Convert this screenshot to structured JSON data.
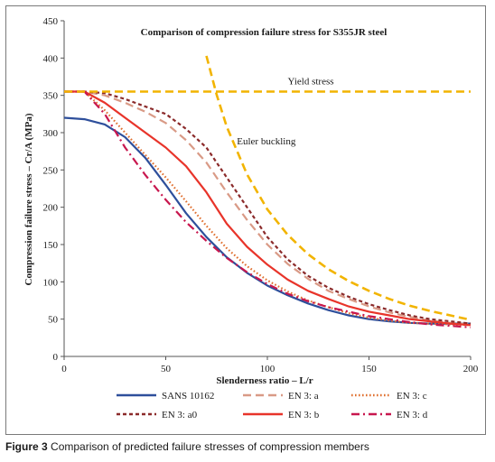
{
  "caption": {
    "number": "Figure 3",
    "text": "Comparison of predicted failure stresses of compression members"
  },
  "chart_data": {
    "type": "line",
    "title": "Comparison of compression failure stress for S355JR steel",
    "xlabel": "Slenderness ratio – L/r",
    "ylabel": "Compression failure stress – Cr/A (MPa)",
    "xlim": [
      0,
      200
    ],
    "ylim": [
      0,
      450
    ],
    "x_ticks": [
      0,
      50,
      100,
      150,
      200
    ],
    "y_ticks": [
      0,
      50,
      100,
      150,
      200,
      250,
      300,
      350,
      400,
      450
    ],
    "grid": false,
    "legend_position": "bottom",
    "annotations": [
      {
        "text": "Yield stress",
        "x": 110,
        "y": 365
      },
      {
        "text": "Euler buckling",
        "x": 85,
        "y": 284
      }
    ],
    "series": [
      {
        "name": "SANS 10162",
        "color": "#2e4f9b",
        "dash": "solid",
        "x": [
          0,
          10,
          20,
          30,
          40,
          50,
          60,
          70,
          80,
          90,
          100,
          110,
          120,
          130,
          140,
          150,
          160,
          170,
          180,
          190,
          200
        ],
        "y": [
          320,
          318,
          311,
          294,
          266,
          230,
          192,
          160,
          133,
          112,
          95,
          82,
          71,
          62,
          55,
          50,
          47,
          45,
          44,
          44,
          44
        ]
      },
      {
        "name": "EN 3: a",
        "color": "#d99a86",
        "dash": "long-dash",
        "x": [
          0,
          10,
          20,
          30,
          40,
          50,
          60,
          70,
          80,
          90,
          100,
          110,
          120,
          130,
          140,
          150,
          160,
          170,
          180,
          190,
          200
        ],
        "y": [
          355,
          355,
          350,
          340,
          328,
          313,
          290,
          260,
          220,
          183,
          150,
          124,
          104,
          88,
          77,
          67,
          59,
          53,
          48,
          45,
          43
        ]
      },
      {
        "name": "EN 3: c",
        "color": "#e07030",
        "dash": "dotted",
        "x": [
          0,
          10,
          20,
          30,
          40,
          50,
          60,
          70,
          80,
          90,
          100,
          110,
          120,
          130,
          140,
          150,
          160,
          170,
          180,
          190,
          200
        ],
        "y": [
          355,
          355,
          330,
          300,
          270,
          240,
          208,
          175,
          145,
          121,
          102,
          87,
          75,
          66,
          58,
          52,
          48,
          45,
          44,
          43,
          42
        ]
      },
      {
        "name": "EN 3: a0",
        "color": "#8b2a2a",
        "dash": "short-dash",
        "x": [
          0,
          10,
          20,
          30,
          40,
          50,
          60,
          70,
          80,
          90,
          100,
          110,
          120,
          130,
          140,
          150,
          160,
          170,
          180,
          190,
          200
        ],
        "y": [
          355,
          355,
          353,
          345,
          335,
          325,
          305,
          280,
          240,
          200,
          160,
          130,
          108,
          92,
          80,
          70,
          62,
          55,
          50,
          47,
          44
        ]
      },
      {
        "name": "EN 3: b",
        "color": "#e8342a",
        "dash": "solid",
        "x": [
          0,
          10,
          20,
          30,
          40,
          50,
          60,
          70,
          80,
          90,
          100,
          110,
          120,
          130,
          140,
          150,
          160,
          170,
          180,
          190,
          200
        ],
        "y": [
          355,
          355,
          340,
          320,
          300,
          280,
          255,
          220,
          178,
          147,
          123,
          103,
          88,
          77,
          67,
          60,
          55,
          50,
          47,
          44,
          42
        ]
      },
      {
        "name": "EN 3: d",
        "color": "#c8174e",
        "dash": "dash-dot",
        "x": [
          0,
          10,
          20,
          30,
          40,
          50,
          60,
          70,
          80,
          90,
          100,
          110,
          120,
          130,
          140,
          150,
          160,
          170,
          180,
          190,
          200
        ],
        "y": [
          355,
          355,
          325,
          280,
          243,
          210,
          180,
          155,
          132,
          113,
          97,
          84,
          74,
          66,
          60,
          54,
          50,
          46,
          43,
          41,
          39
        ]
      },
      {
        "name": "Yield stress",
        "color": "#f2b400",
        "dash": "long-dash",
        "x": [
          0,
          200
        ],
        "y": [
          355,
          355
        ]
      },
      {
        "name": "Euler buckling",
        "color": "#f2b400",
        "dash": "long-dash",
        "x": [
          70,
          75,
          80,
          90,
          100,
          110,
          120,
          130,
          140,
          150,
          160,
          170,
          180,
          190,
          200
        ],
        "y": [
          403,
          351,
          308,
          244,
          197,
          163,
          137,
          117,
          101,
          88,
          77,
          68,
          61,
          55,
          49
        ]
      }
    ]
  }
}
